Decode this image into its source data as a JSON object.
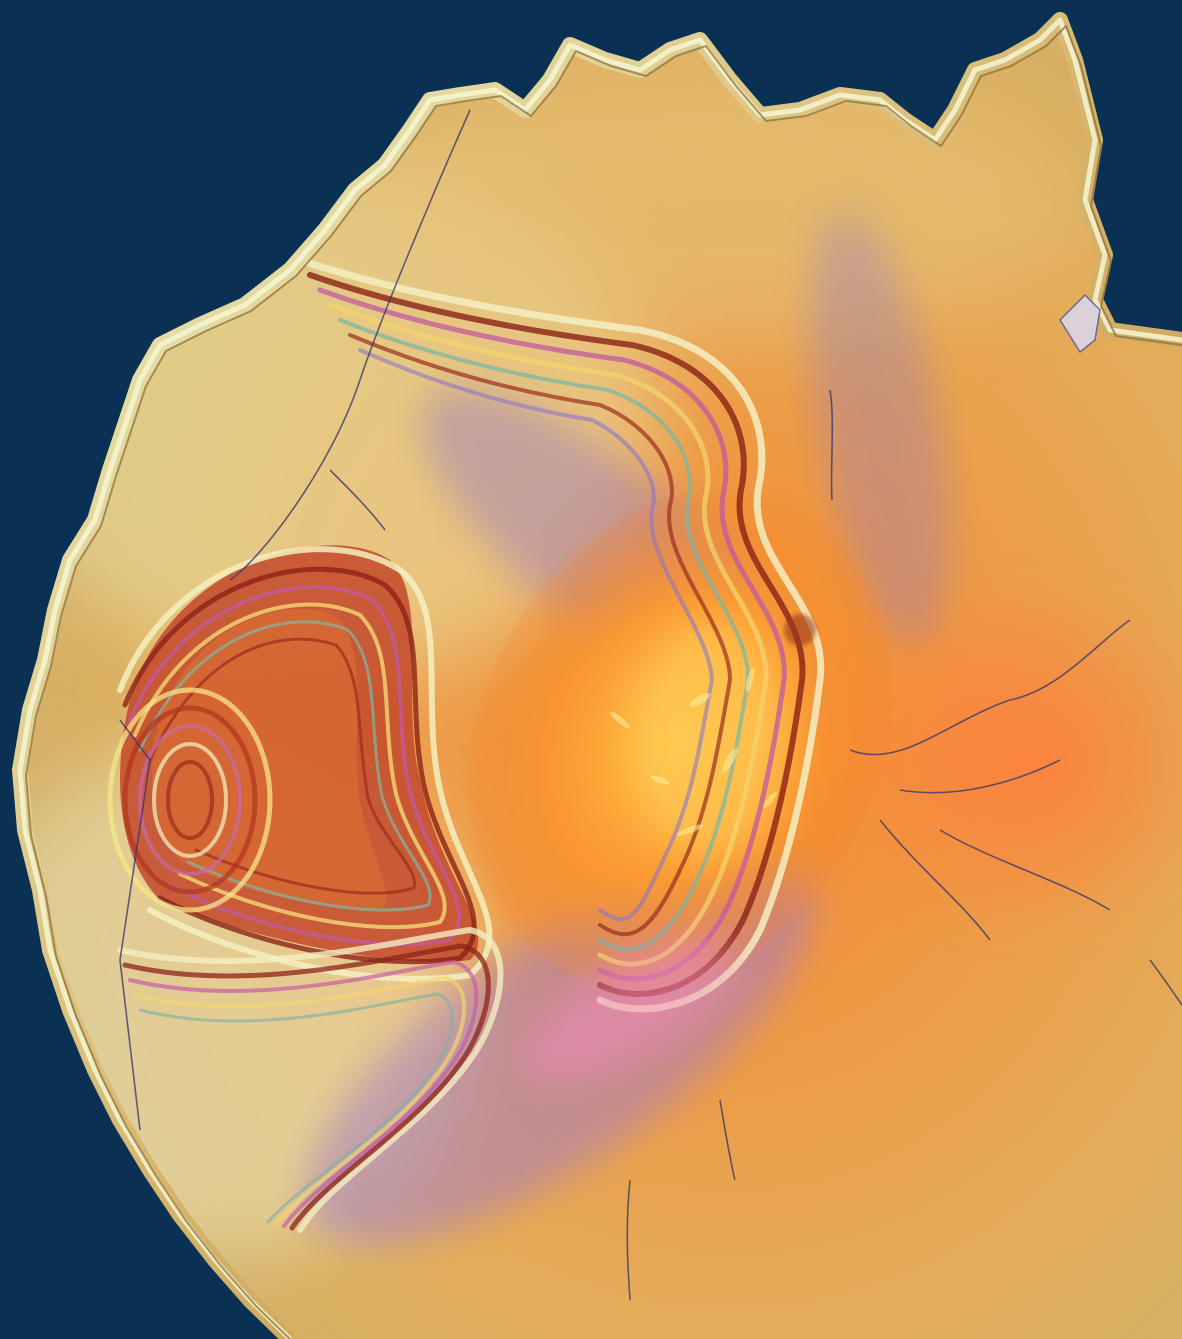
{
  "image": {
    "kind": "photograph",
    "subject_colors": {
      "background": "#0a3153",
      "rim": "#c9a257",
      "rim_highlight": "#eef2c4",
      "film_base": "#e0a54b",
      "core_orange": "#f4892c",
      "core_bright": "#ffb640",
      "fringe_magenta": "#c05aa0",
      "fringe_violet": "#8e6cb8",
      "fringe_red": "#b8361f",
      "fringe_green": "#b9d49a",
      "crack_line": "#3f3a6a"
    }
  }
}
